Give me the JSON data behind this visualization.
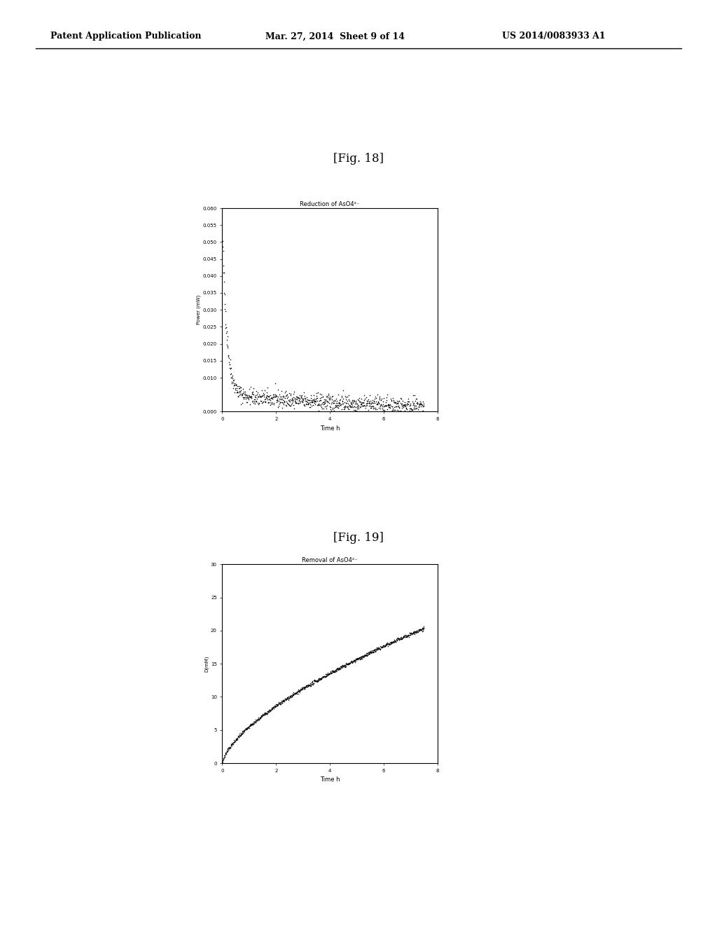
{
  "fig18_title": "Reduction of AsO4²⁻",
  "fig18_xlabel": "Time h",
  "fig18_ylabel": "Power (mW)",
  "fig18_xlim": [
    0,
    8
  ],
  "fig18_ylim": [
    0.0,
    0.06
  ],
  "fig18_yticks": [
    0.0,
    0.01,
    0.015,
    0.02,
    0.025,
    0.03,
    0.035,
    0.04,
    0.045,
    0.05,
    0.055,
    0.06
  ],
  "fig18_ytick_labels": [
    "0.000",
    "0.010",
    "0.015",
    "0.020",
    "0.025",
    "0.030",
    "0.035",
    "0.040",
    "0.045",
    "0.050",
    "0.055",
    "0.060"
  ],
  "fig18_xticks": [
    0,
    2,
    4,
    6,
    8
  ],
  "fig19_title": "Removal of AsO4²⁻",
  "fig19_xlabel": "Time h",
  "fig19_ylabel": "D(mM)",
  "fig19_xlim": [
    0,
    8
  ],
  "fig19_ylim": [
    0,
    30
  ],
  "fig19_yticks": [
    0,
    5,
    10,
    15,
    20,
    25,
    30
  ],
  "fig19_ytick_labels": [
    "0",
    "5",
    "10",
    "15",
    "20",
    "25",
    "30"
  ],
  "fig19_xticks": [
    0,
    2,
    4,
    6,
    8
  ],
  "fig18_label": "[Fig. 18]",
  "fig19_label": "[Fig. 19]",
  "header_left": "Patent Application Publication",
  "header_mid": "Mar. 27, 2014  Sheet 9 of 14",
  "header_right": "US 2014/0083933 A1",
  "bg_color": "#ffffff",
  "plot_bg": "#ffffff",
  "dot_color": "#000000",
  "dot_size": 1.2
}
